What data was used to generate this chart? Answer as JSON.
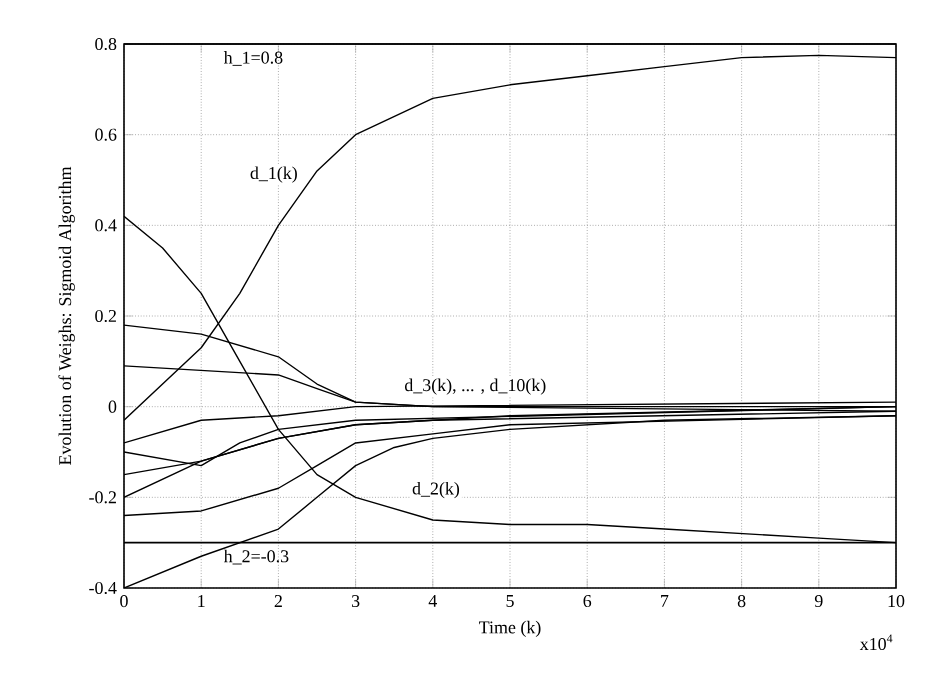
{
  "chart_data": {
    "type": "line",
    "ylabel": "Evolution of Weighs: Sigmoid Algorithm",
    "xlabel": "Time (k)",
    "xlim": [
      0,
      10
    ],
    "xticks": [
      0,
      1,
      2,
      3,
      4,
      5,
      6,
      7,
      8,
      9,
      10
    ],
    "ylim": [
      -0.4,
      0.8
    ],
    "yticks": [
      -0.4,
      -0.2,
      0,
      0.2,
      0.4,
      0.6,
      0.8
    ],
    "grid": true,
    "line_style": "solid",
    "ref_lines": [
      {
        "axis": "y",
        "value": 0.8,
        "label": "h_1=0.8"
      },
      {
        "axis": "y",
        "value": -0.3,
        "label": "h_2=-0.3"
      }
    ],
    "annotations": [
      "d_1(k)",
      "d_2(k)",
      "d_3(k), ... , d_10(k)",
      "x10$^{4}$"
    ],
    "series": [
      {
        "color": "#000000",
        "x": [
          0,
          0.5,
          1,
          1.5,
          2,
          2.5,
          3,
          3.5,
          4,
          5,
          6,
          7,
          8,
          9,
          10
        ],
        "values": [
          -0.03,
          0.05,
          0.13,
          0.25,
          0.4,
          0.52,
          0.6,
          0.64,
          0.68,
          0.71,
          0.73,
          0.75,
          0.77,
          0.775,
          0.77
        ]
      },
      {
        "color": "#000000",
        "x": [
          0,
          0.5,
          1,
          1.5,
          2,
          2.5,
          3,
          4,
          5,
          6,
          7,
          8,
          9,
          10
        ],
        "values": [
          0.42,
          0.35,
          0.25,
          0.1,
          -0.05,
          -0.15,
          -0.2,
          -0.25,
          -0.26,
          -0.26,
          -0.27,
          -0.28,
          -0.29,
          -0.3
        ]
      },
      {
        "color": "#000000",
        "x": [
          0,
          1,
          2,
          2.5,
          3,
          4,
          6,
          10
        ],
        "values": [
          0.18,
          0.16,
          0.11,
          0.05,
          0.01,
          0.0,
          0.0,
          0.0
        ]
      },
      {
        "color": "#000000",
        "x": [
          0,
          1,
          2,
          2.5,
          3,
          4,
          10
        ],
        "values": [
          0.09,
          0.08,
          0.07,
          0.04,
          0.01,
          0.0,
          -0.01
        ]
      },
      {
        "color": "#000000",
        "x": [
          0,
          1,
          2,
          2.5,
          3,
          3.5,
          4,
          5,
          7,
          10
        ],
        "values": [
          -0.4,
          -0.33,
          -0.27,
          -0.2,
          -0.13,
          -0.09,
          -0.07,
          -0.05,
          -0.03,
          -0.02
        ]
      },
      {
        "color": "#000000",
        "x": [
          0,
          1,
          2,
          2.5,
          3,
          4,
          5,
          10
        ],
        "values": [
          -0.24,
          -0.23,
          -0.18,
          -0.13,
          -0.08,
          -0.06,
          -0.04,
          -0.02
        ]
      },
      {
        "color": "#000000",
        "x": [
          0,
          1,
          2,
          3,
          4,
          10
        ],
        "values": [
          -0.2,
          -0.12,
          -0.07,
          -0.04,
          -0.03,
          -0.01
        ]
      },
      {
        "color": "#000000",
        "x": [
          0,
          1,
          2,
          3,
          5,
          10
        ],
        "values": [
          -0.15,
          -0.12,
          -0.07,
          -0.04,
          -0.02,
          0.0
        ]
      },
      {
        "color": "#000000",
        "x": [
          0,
          1,
          1.5,
          2,
          3,
          10
        ],
        "values": [
          -0.1,
          -0.13,
          -0.08,
          -0.05,
          -0.03,
          0.0
        ]
      },
      {
        "color": "#000000",
        "x": [
          0,
          1,
          2,
          3,
          10
        ],
        "values": [
          -0.08,
          -0.03,
          -0.02,
          0.0,
          0.01
        ]
      }
    ]
  }
}
